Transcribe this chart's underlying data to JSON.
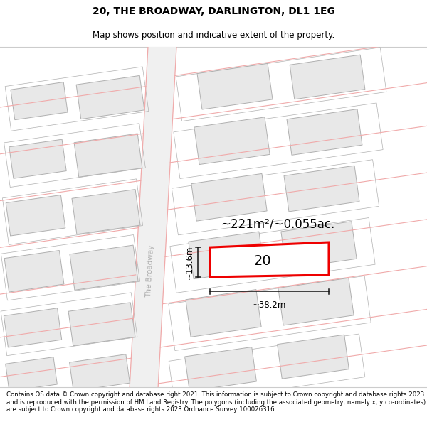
{
  "title": "20, THE BROADWAY, DARLINGTON, DL1 1EG",
  "subtitle": "Map shows position and indicative extent of the property.",
  "footer": "Contains OS data © Crown copyright and database right 2021. This information is subject to Crown copyright and database rights 2023 and is reproduced with the permission of HM Land Registry. The polygons (including the associated geometry, namely x, y co-ordinates) are subject to Crown copyright and database rights 2023 Ordnance Survey 100026316.",
  "area_label": "~221m²/~0.055ac.",
  "width_label": "~38.2m",
  "height_label": "~13.6m",
  "plot_number": "20",
  "street_label": "The Broadway",
  "map_bg": "#ffffff",
  "building_fill": "#e8e8e8",
  "building_edge": "#b0b0b0",
  "highlight_color": "#ee0000",
  "road_line_color": "#f0aaaa",
  "road_fill": "#f5f5f5",
  "dim_line_color": "#111111",
  "title_fontsize": 10,
  "subtitle_fontsize": 8.5,
  "footer_fontsize": 6.2
}
